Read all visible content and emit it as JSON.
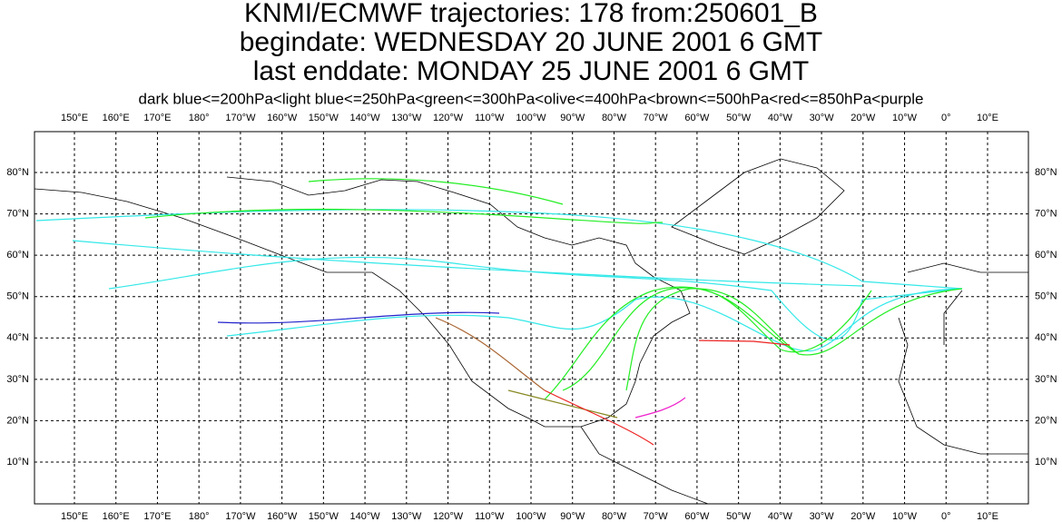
{
  "header": {
    "title_lines": [
      "KNMI/ECMWF trajectories:  178 from:250601_B",
      "begindate:  WEDNESDAY 20 JUNE      2001  6 GMT",
      "last enddate:  MONDAY    25 JUNE      2001  6 GMT"
    ],
    "legend": "dark blue<=200hPa<light blue<=250hPa<green<=300hPa<olive<=400hPa<brown<=500hPa<red<=850hPa<purple"
  },
  "map": {
    "lon_labels": [
      "150°E",
      "160°E",
      "170°E",
      "180°",
      "170°W",
      "160°W",
      "150°W",
      "140°W",
      "130°W",
      "120°W",
      "110°W",
      "100°W",
      "90°W",
      "80°W",
      "70°W",
      "60°W",
      "50°W",
      "40°W",
      "30°W",
      "20°W",
      "10°W",
      "0°",
      "10°E"
    ],
    "lat_labels": [
      "80°N",
      "70°N",
      "60°N",
      "50°N",
      "40°N",
      "30°N",
      "20°N",
      "10°N"
    ]
  }
}
